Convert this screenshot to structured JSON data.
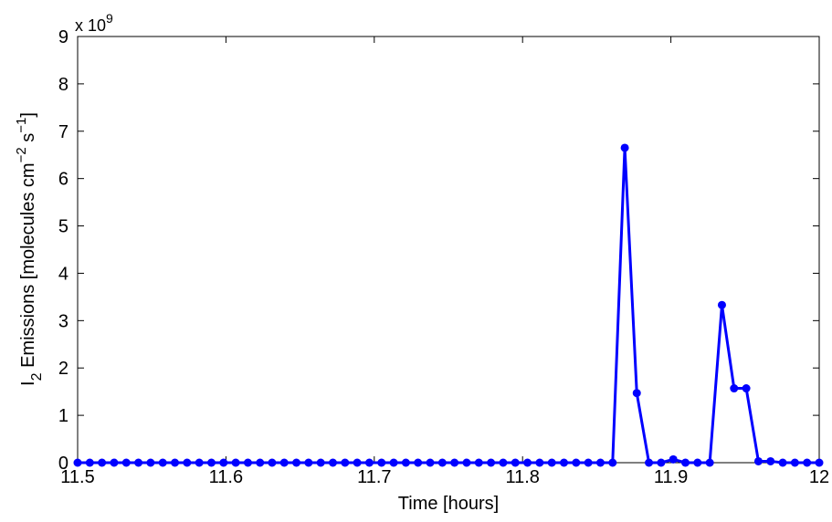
{
  "chart_data": {
    "type": "line",
    "title": "",
    "xlabel": "Time [hours]",
    "ylabel": {
      "main": "I",
      "sub": "2",
      "text": " Emissions [molecules cm",
      "sup1": "−2",
      "mid": " s",
      "sup2": "−1",
      "end": "]"
    },
    "exponent": {
      "base": "x 10",
      "power": "9"
    },
    "xlim": [
      11.5,
      12.0
    ],
    "ylim": [
      0,
      9
    ],
    "xticks": [
      11.5,
      11.6,
      11.7,
      11.8,
      11.9,
      12.0
    ],
    "xtick_labels": [
      "11.5",
      "11.6",
      "11.7",
      "11.8",
      "11.9",
      "12"
    ],
    "yticks": [
      0,
      1,
      2,
      3,
      4,
      5,
      6,
      7,
      8,
      9
    ],
    "ytick_labels": [
      "0",
      "1",
      "2",
      "3",
      "4",
      "5",
      "6",
      "7",
      "8",
      "9"
    ],
    "grid": false,
    "series": [
      {
        "color": "#0000ff",
        "x": [
          11.5,
          11.5082,
          11.5164,
          11.5246,
          11.5328,
          11.541,
          11.5492,
          11.5574,
          11.5656,
          11.5738,
          11.582,
          11.5902,
          11.5984,
          11.6066,
          11.6148,
          11.623,
          11.6311,
          11.6393,
          11.6475,
          11.6557,
          11.6639,
          11.6721,
          11.6803,
          11.6885,
          11.6967,
          11.7049,
          11.7131,
          11.7213,
          11.7295,
          11.7377,
          11.7459,
          11.7541,
          11.7623,
          11.7705,
          11.7787,
          11.7869,
          11.7951,
          11.8033,
          11.8115,
          11.8197,
          11.8279,
          11.8361,
          11.8443,
          11.8525,
          11.8607,
          11.8689,
          11.877,
          11.8852,
          11.8934,
          11.9016,
          11.9098,
          11.918,
          11.9262,
          11.9344,
          11.9426,
          11.9508,
          11.959,
          11.9672,
          11.9754,
          11.9836,
          11.9918,
          12.0
        ],
        "y": [
          0,
          0,
          0,
          0,
          0,
          0,
          0,
          0,
          0,
          0,
          0,
          0,
          0,
          0,
          0,
          0,
          0,
          0,
          0,
          0,
          0,
          0,
          0,
          0,
          0,
          0,
          0,
          0,
          0,
          0,
          0,
          0,
          0,
          0,
          0,
          0,
          0,
          0,
          0,
          0,
          0,
          0,
          0,
          0,
          0,
          6.65,
          1.47,
          0,
          0,
          0.07,
          0,
          0,
          0,
          3.33,
          1.57,
          1.57,
          0.03,
          0.03,
          0,
          0,
          0,
          0
        ]
      }
    ]
  }
}
